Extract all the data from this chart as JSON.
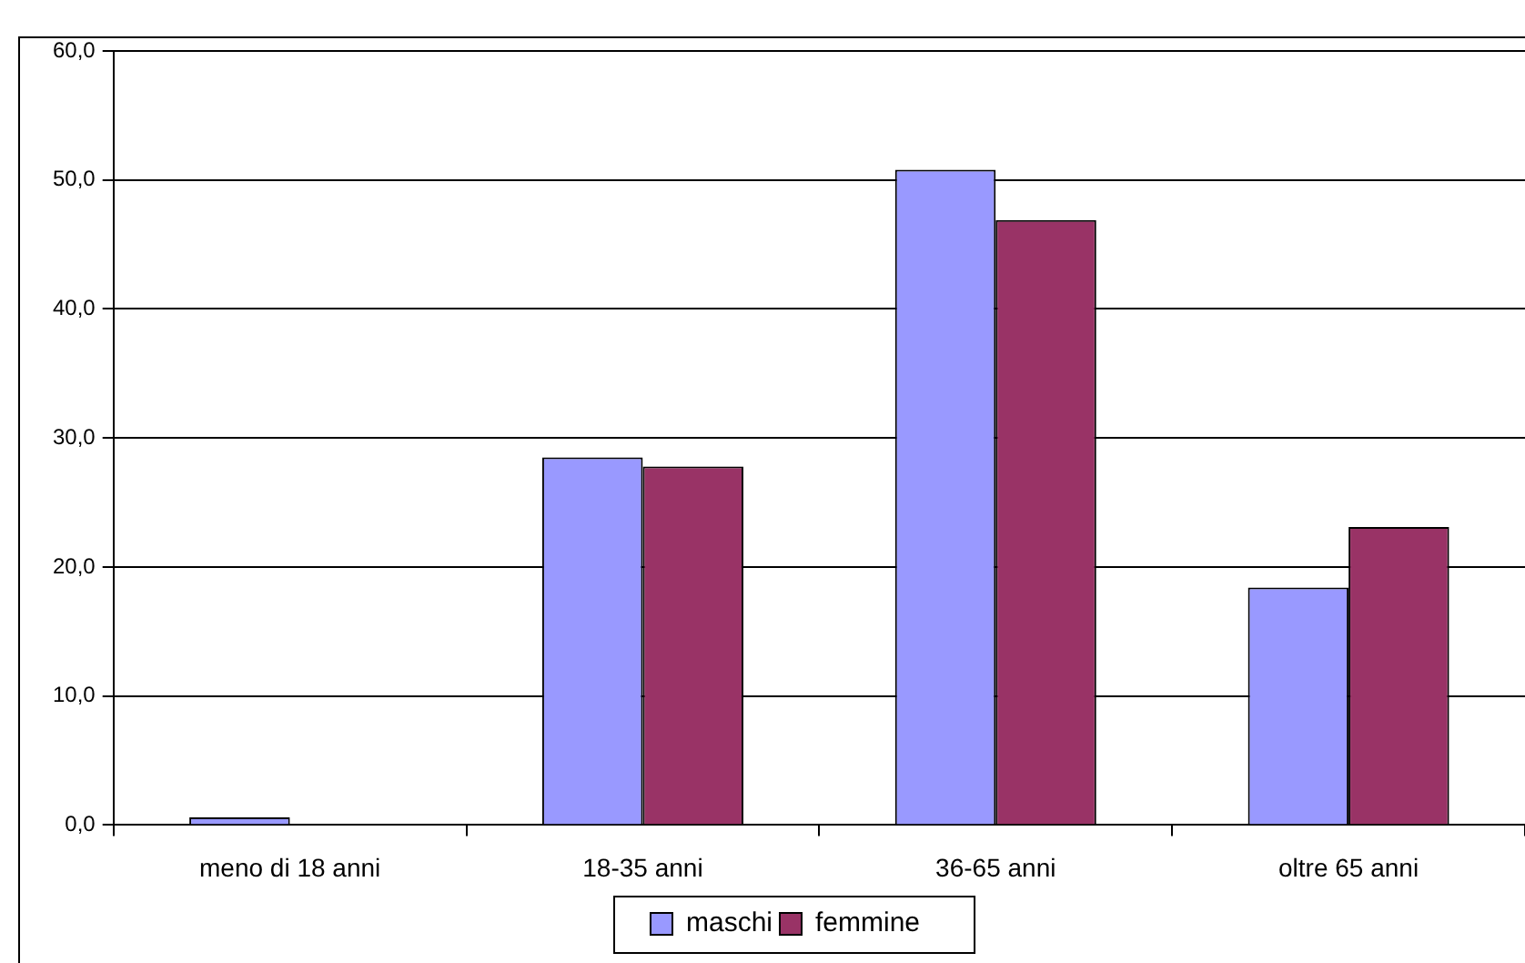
{
  "chart_data": {
    "type": "bar",
    "categories": [
      "meno di 18 anni",
      "18-35 anni",
      "36-65 anni",
      "oltre 65 anni"
    ],
    "series": [
      {
        "name": "maschi",
        "color": "#9999ff",
        "values": [
          0.6,
          28.5,
          50.8,
          18.4
        ]
      },
      {
        "name": "femmine",
        "color": "#993366",
        "values": [
          0,
          27.8,
          46.9,
          23.1
        ]
      }
    ],
    "ylim": [
      0,
      60
    ],
    "yticks": [
      {
        "value": 0,
        "label": "0,0"
      },
      {
        "value": 10,
        "label": "10,0"
      },
      {
        "value": 20,
        "label": "20,0"
      },
      {
        "value": 30,
        "label": "30,0"
      },
      {
        "value": 40,
        "label": "40,0"
      },
      {
        "value": 50,
        "label": "50,0"
      },
      {
        "value": 60,
        "label": "60,0"
      }
    ],
    "grid": "y",
    "legend": "bottom"
  }
}
